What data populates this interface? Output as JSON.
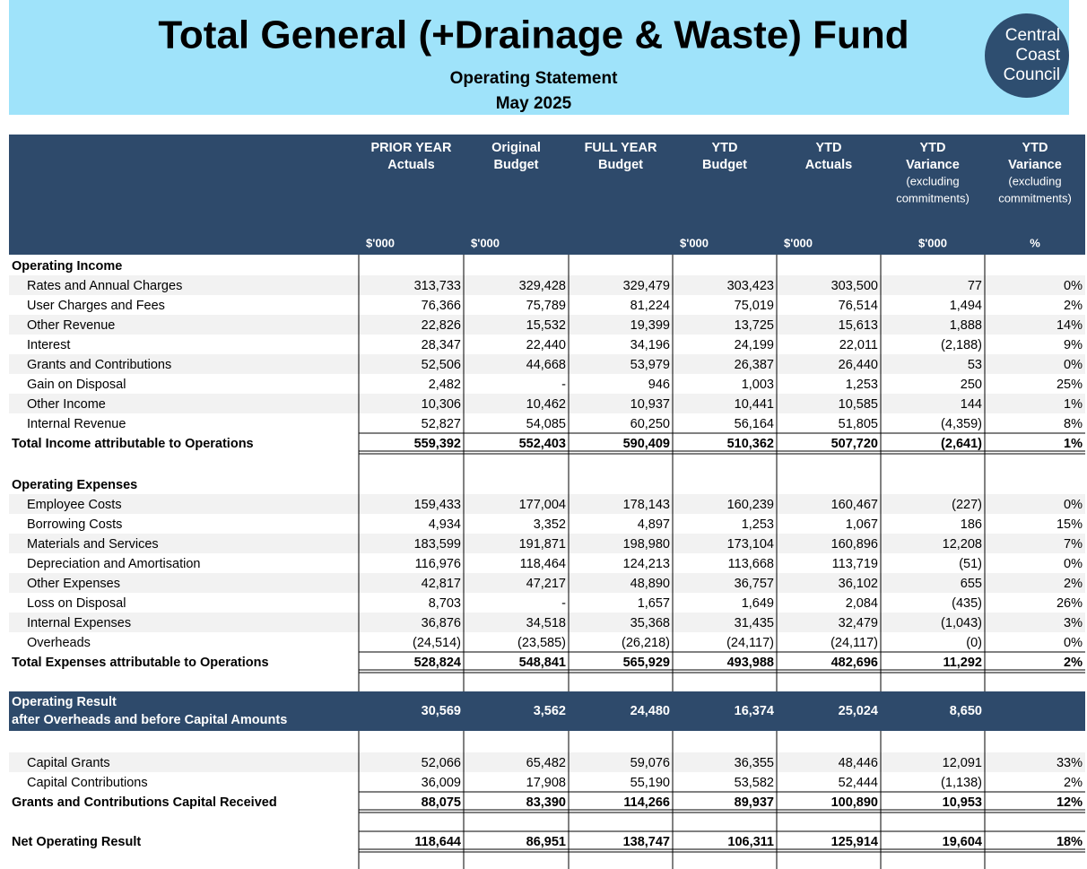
{
  "header": {
    "title": "Total General (+Drainage & Waste) Fund",
    "subtitle": "Operating Statement",
    "period": "May 2025",
    "logo": [
      "Central",
      "Coast",
      "Council"
    ]
  },
  "table": {
    "columns": [
      [
        "PRIOR YEAR",
        "Actuals"
      ],
      [
        "Original",
        "Budget"
      ],
      [
        "FULL YEAR",
        "Budget"
      ],
      [
        "YTD",
        "Budget"
      ],
      [
        "YTD",
        "Actuals"
      ],
      [
        "YTD",
        "Variance",
        "(excluding",
        "commitments)"
      ],
      [
        "YTD",
        "Variance",
        "(excluding",
        "commitments)"
      ]
    ],
    "units": [
      "$'000",
      "$'000",
      null,
      "$'000",
      "$'000",
      "$'000",
      "%"
    ],
    "income": {
      "heading": "Operating Income",
      "rows": [
        {
          "label": "Rates and Annual Charges",
          "values": [
            "313,733",
            "329,428",
            "329,479",
            "303,423",
            "303,500",
            "77",
            "0%"
          ]
        },
        {
          "label": "User Charges and Fees",
          "values": [
            "76,366",
            "75,789",
            "81,224",
            "75,019",
            "76,514",
            "1,494",
            "2%"
          ]
        },
        {
          "label": "Other Revenue",
          "values": [
            "22,826",
            "15,532",
            "19,399",
            "13,725",
            "15,613",
            "1,888",
            "14%"
          ]
        },
        {
          "label": "Interest",
          "values": [
            "28,347",
            "22,440",
            "34,196",
            "24,199",
            "22,011",
            "(2,188)",
            "9%"
          ]
        },
        {
          "label": "Grants and Contributions",
          "values": [
            "52,506",
            "44,668",
            "53,979",
            "26,387",
            "26,440",
            "53",
            "0%"
          ]
        },
        {
          "label": "Gain on Disposal",
          "values": [
            "2,482",
            "-",
            "946",
            "1,003",
            "1,253",
            "250",
            "25%"
          ]
        },
        {
          "label": "Other Income",
          "values": [
            "10,306",
            "10,462",
            "10,937",
            "10,441",
            "10,585",
            "144",
            "1%"
          ]
        },
        {
          "label": "Internal Revenue",
          "values": [
            "52,827",
            "54,085",
            "60,250",
            "56,164",
            "51,805",
            "(4,359)",
            "8%"
          ]
        }
      ],
      "total": {
        "label": "Total Income attributable to Operations",
        "values": [
          "559,392",
          "552,403",
          "590,409",
          "510,362",
          "507,720",
          "(2,641)",
          "1%"
        ]
      }
    },
    "expenses": {
      "heading": "Operating Expenses",
      "rows": [
        {
          "label": "Employee Costs",
          "values": [
            "159,433",
            "177,004",
            "178,143",
            "160,239",
            "160,467",
            "(227)",
            "0%"
          ]
        },
        {
          "label": "Borrowing Costs",
          "values": [
            "4,934",
            "3,352",
            "4,897",
            "1,253",
            "1,067",
            "186",
            "15%"
          ]
        },
        {
          "label": "Materials and Services",
          "values": [
            "183,599",
            "191,871",
            "198,980",
            "173,104",
            "160,896",
            "12,208",
            "7%"
          ]
        },
        {
          "label": "Depreciation and Amortisation",
          "values": [
            "116,976",
            "118,464",
            "124,213",
            "113,668",
            "113,719",
            "(51)",
            "0%"
          ]
        },
        {
          "label": "Other Expenses",
          "values": [
            "42,817",
            "47,217",
            "48,890",
            "36,757",
            "36,102",
            "655",
            "2%"
          ]
        },
        {
          "label": "Loss on Disposal",
          "values": [
            "8,703",
            "-",
            "1,657",
            "1,649",
            "2,084",
            "(435)",
            "26%"
          ]
        },
        {
          "label": "Internal Expenses",
          "values": [
            "36,876",
            "34,518",
            "35,368",
            "31,435",
            "32,479",
            "(1,043)",
            "3%"
          ]
        },
        {
          "label": "Overheads",
          "values": [
            "(24,514)",
            "(23,585)",
            "(26,218)",
            "(24,117)",
            "(24,117)",
            "(0)",
            "0%"
          ]
        }
      ],
      "total": {
        "label": "Total Expenses attributable to Operations",
        "values": [
          "528,824",
          "548,841",
          "565,929",
          "493,988",
          "482,696",
          "11,292",
          "2%"
        ]
      }
    },
    "result": {
      "label": [
        "Operating Result",
        "after Overheads and before Capital Amounts"
      ],
      "values": [
        "30,569",
        "3,562",
        "24,480",
        "16,374",
        "25,024",
        "8,650"
      ]
    },
    "capital": {
      "rows": [
        {
          "label": "Capital Grants",
          "values": [
            "52,066",
            "65,482",
            "59,076",
            "36,355",
            "48,446",
            "12,091",
            "33%"
          ]
        },
        {
          "label": "Capital Contributions",
          "values": [
            "36,009",
            "17,908",
            "55,190",
            "53,582",
            "52,444",
            "(1,138)",
            "2%"
          ]
        }
      ],
      "total": {
        "label": "Grants and Contributions Capital Received",
        "values": [
          "88,075",
          "83,390",
          "114,266",
          "89,937",
          "100,890",
          "10,953",
          "12%"
        ]
      }
    },
    "net": {
      "label": "Net Operating Result",
      "values": [
        "118,644",
        "86,951",
        "138,747",
        "106,311",
        "125,914",
        "19,604",
        "18%"
      ]
    }
  }
}
